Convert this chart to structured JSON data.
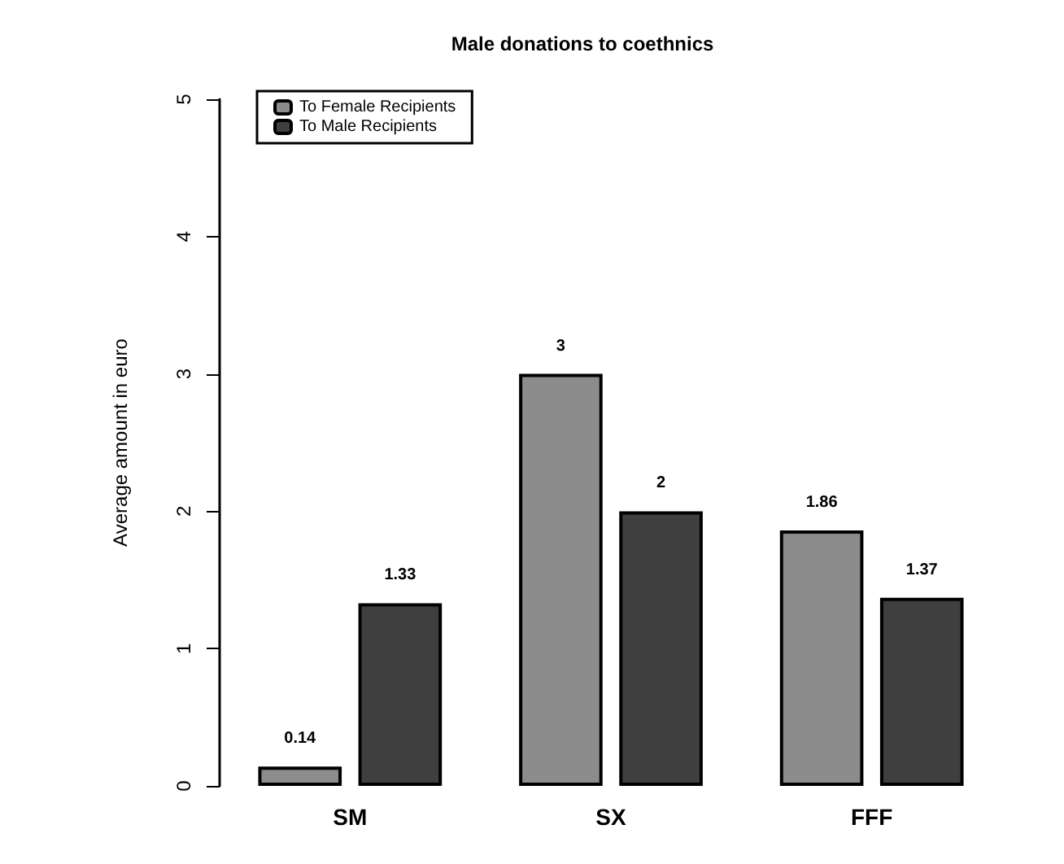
{
  "chart_data": {
    "type": "bar",
    "title": "Male donations to coethnics",
    "ylabel": "Average amount in euro",
    "categories": [
      "SM",
      "SX",
      "FFF"
    ],
    "series": [
      {
        "name": "To Female Recipients",
        "color": "#8c8c8c",
        "values": [
          0.14,
          3,
          1.86
        ]
      },
      {
        "name": "To Male Recipients",
        "color": "#3f3f3f",
        "values": [
          1.33,
          2,
          1.37
        ]
      }
    ],
    "ylim": [
      0,
      5
    ],
    "yticks": [
      0,
      1,
      2,
      3,
      4,
      5
    ],
    "data_labels": true,
    "legend": "top left",
    "grid": false
  }
}
